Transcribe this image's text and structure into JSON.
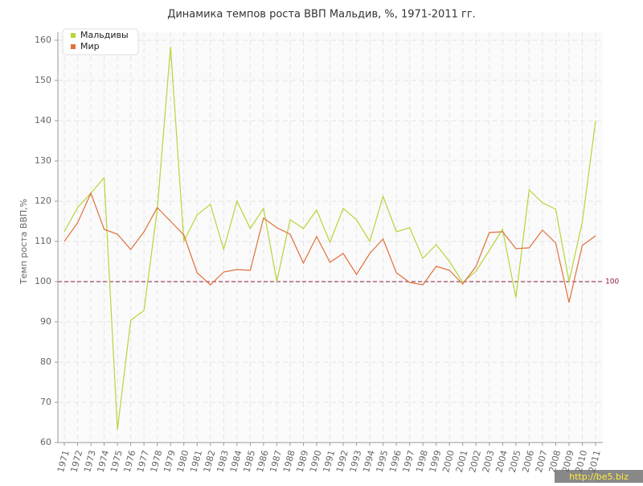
{
  "chart_data": {
    "type": "line",
    "title": "Динамика темпов роста ВВП Мальдив, %, 1971-2011 гг.",
    "y_label": "Темп роста ВВП,%",
    "categories": [
      "1971",
      "1972",
      "1973",
      "1974",
      "1975",
      "1976",
      "1977",
      "1978",
      "1979",
      "1980",
      "1981",
      "1982",
      "1983",
      "1984",
      "1985",
      "1986",
      "1987",
      "1988",
      "1989",
      "1990",
      "1991",
      "1992",
      "1993",
      "1994",
      "1995",
      "1996",
      "1997",
      "1998",
      "1999",
      "2000",
      "2001",
      "2002",
      "2003",
      "2004",
      "2005",
      "2006",
      "2007",
      "2008",
      "2009",
      "2010",
      "2011"
    ],
    "series": [
      {
        "name": "Мальдивы",
        "color": "#b5d63a",
        "values": [
          112.4,
          118.4,
          122,
          125.8,
          63.2,
          90.4,
          92.8,
          118,
          158.4,
          110,
          116.6,
          119.2,
          108,
          120,
          113.2,
          118.2,
          100,
          115.4,
          113.2,
          117.8,
          109.8,
          118.2,
          115.4,
          110,
          121.2,
          112.4,
          113.4,
          105.8,
          109.2,
          105,
          99.8,
          102.6,
          107.8,
          113,
          96,
          122.8,
          119.6,
          118,
          100,
          114.8,
          140
        ]
      },
      {
        "name": "Мир",
        "color": "#e0703a",
        "values": [
          110,
          114.6,
          122,
          113,
          111.8,
          108,
          112.4,
          118.4,
          115,
          111.6,
          102.2,
          99.2,
          102.4,
          103,
          102.8,
          115.8,
          113.4,
          111.8,
          104.6,
          111.2,
          104.8,
          107,
          101.8,
          107,
          110.6,
          102.2,
          99.8,
          99.2,
          103.8,
          102.8,
          99.4,
          103.8,
          112.2,
          112.4,
          108.2,
          108.4,
          112.8,
          109.6,
          94.8,
          109,
          111.4
        ]
      }
    ],
    "ylim": [
      60,
      160
    ],
    "yticks": [
      60,
      70,
      80,
      90,
      100,
      110,
      120,
      130,
      140,
      150,
      160
    ],
    "grid": true,
    "legend": "top-left",
    "reference_line": 100,
    "reference_color": "#8b1a3a",
    "watermark": "http://be5.biz"
  }
}
